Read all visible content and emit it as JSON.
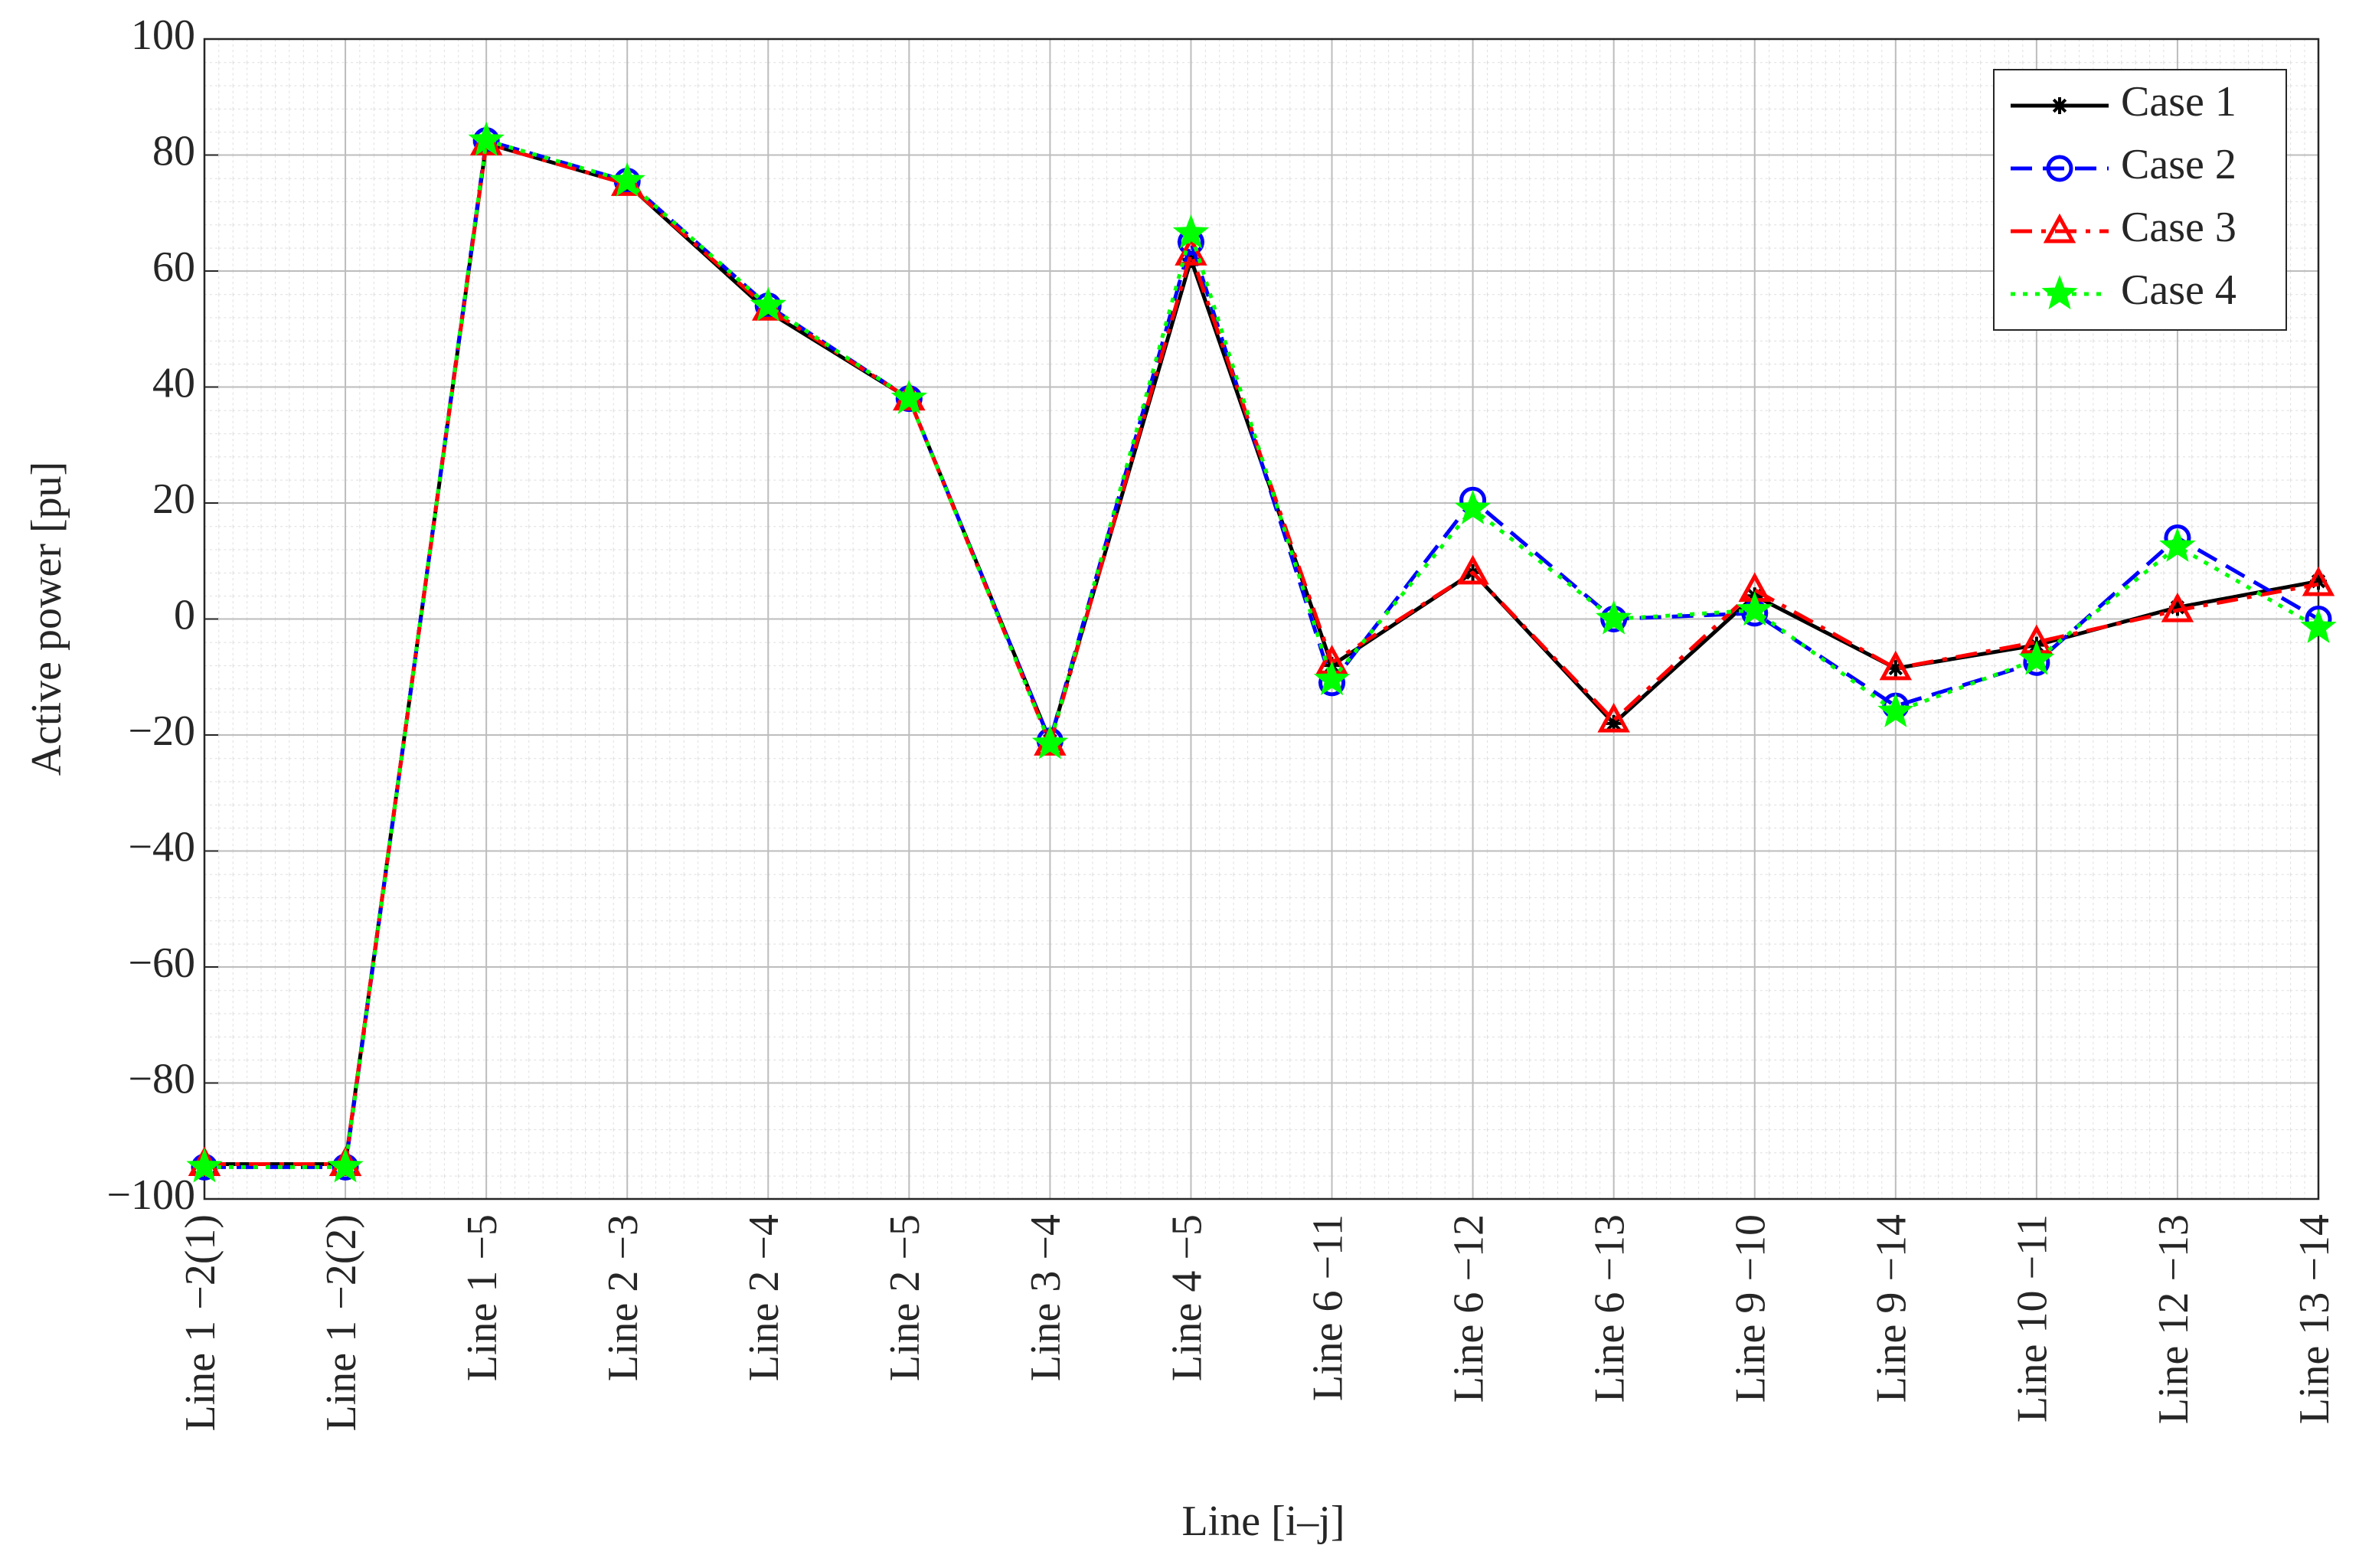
{
  "chart_data": {
    "type": "line",
    "x_label": "Line [i–j]",
    "y_label": "Active power [pu]",
    "categories": [
      "Line 1 −2(1)",
      "Line 1 −2(2)",
      "Line 1 −5",
      "Line 2 −3",
      "Line 2 −4",
      "Line 2 −5",
      "Line 3 −4",
      "Line 4 −5",
      "Line 6 −11",
      "Line 6 −12",
      "Line 6 −13",
      "Line 9 −10",
      "Line 9 −14",
      "Line 10 −11",
      "Line 12 −13",
      "Line 13 −14"
    ],
    "series": [
      {
        "name": "Case 1",
        "color": "#000000",
        "dash": "solid",
        "marker": "asterisk",
        "values": [
          -94,
          -94,
          82,
          75,
          53,
          38,
          -21,
          62,
          -8,
          8,
          -18,
          4,
          -8.5,
          -4.5,
          2,
          6.5
        ]
      },
      {
        "name": "Case 2",
        "color": "#0000ff",
        "dash": "dashed",
        "marker": "circle",
        "values": [
          -94.5,
          -94.5,
          82.5,
          75.5,
          54,
          38,
          -21,
          65,
          -11,
          20.5,
          0,
          1,
          -15,
          -7.5,
          14,
          0
        ]
      },
      {
        "name": "Case 3",
        "color": "#ff0000",
        "dash": "dashdot",
        "marker": "triangle",
        "values": [
          -94,
          -94,
          82,
          75,
          53.5,
          38,
          -21.5,
          63,
          -7.5,
          8,
          -17.5,
          5,
          -8.5,
          -4,
          1.5,
          6
        ]
      },
      {
        "name": "Case 4",
        "color": "#00ff00",
        "dash": "dotted",
        "marker": "star",
        "values": [
          -94.5,
          -94.5,
          82.5,
          75.5,
          54,
          38,
          -21.5,
          66.5,
          -10.5,
          19,
          0,
          1.5,
          -16,
          -7,
          12.5,
          -1.5
        ]
      }
    ],
    "ylim": [
      -100,
      100
    ],
    "yticks": [
      {
        "value": -100,
        "label": "−100"
      },
      {
        "value": -80,
        "label": "−80"
      },
      {
        "value": -60,
        "label": "−60"
      },
      {
        "value": -40,
        "label": "−40"
      },
      {
        "value": -20,
        "label": "−20"
      },
      0,
      20,
      40,
      60,
      80,
      100
    ],
    "grid": true,
    "minor_grid": true,
    "legend": "top-right"
  }
}
